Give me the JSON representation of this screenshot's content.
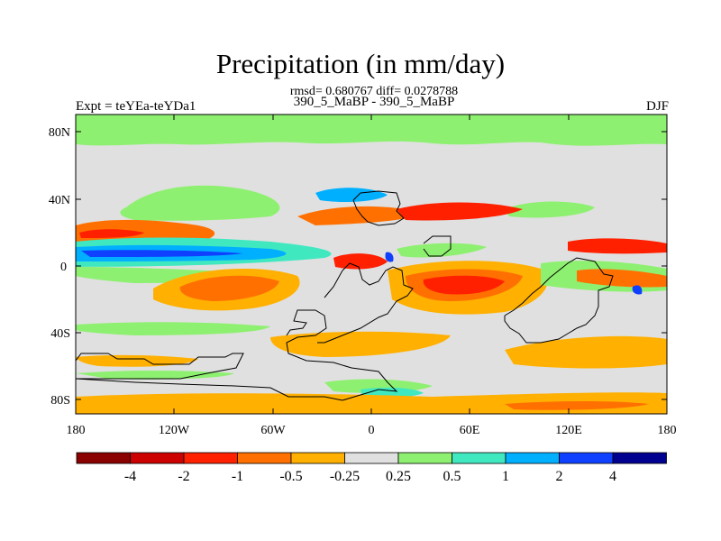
{
  "title": "Precipitation (in mm/day)",
  "stats_line": "rmsd= 0.680767 diff= 0.0278788",
  "comparison": "390_5_MaBP - 390_5_MaBP",
  "experiment": "Expt = teYEa-teYDa1",
  "season": "DJF",
  "axes": {
    "lat_ticks": [
      "80N",
      "40N",
      "0",
      "40S",
      "80S"
    ],
    "lon_ticks": [
      "180",
      "120W",
      "60W",
      "0",
      "60E",
      "120E",
      "180"
    ]
  },
  "colorbar": {
    "colors": [
      "#8b0000",
      "#cc0000",
      "#ff2000",
      "#ff7000",
      "#ffb000",
      "#e0e0e0",
      "#8ef070",
      "#40e8c0",
      "#00b0ff",
      "#1040ff",
      "#000090"
    ],
    "labels": [
      "-4",
      "-2",
      "-1",
      "-0.5",
      "-0.25",
      "0.25",
      "0.5",
      "1",
      "2",
      "4"
    ]
  },
  "colors": {
    "background": "#e0e0e0",
    "coast": "#000000"
  }
}
